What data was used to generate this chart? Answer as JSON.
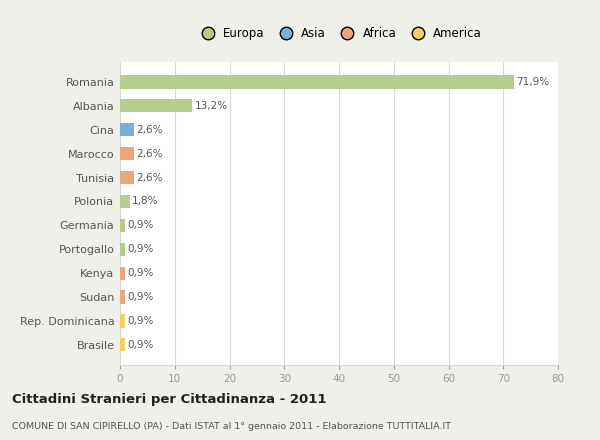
{
  "countries": [
    "Romania",
    "Albania",
    "Cina",
    "Marocco",
    "Tunisia",
    "Polonia",
    "Germania",
    "Portogallo",
    "Kenya",
    "Sudan",
    "Rep. Dominicana",
    "Brasile"
  ],
  "values": [
    71.9,
    13.2,
    2.6,
    2.6,
    2.6,
    1.8,
    0.9,
    0.9,
    0.9,
    0.9,
    0.9,
    0.9
  ],
  "labels": [
    "71,9%",
    "13,2%",
    "2,6%",
    "2,6%",
    "2,6%",
    "1,8%",
    "0,9%",
    "0,9%",
    "0,9%",
    "0,9%",
    "0,9%",
    "0,9%"
  ],
  "colors": [
    "#b5cc8e",
    "#b5cc8e",
    "#7bafd4",
    "#e8a87c",
    "#e8a87c",
    "#b5cc8e",
    "#b5cc8e",
    "#b5cc8e",
    "#e8a87c",
    "#e8a87c",
    "#f0d060",
    "#f0d060"
  ],
  "legend_labels": [
    "Europa",
    "Asia",
    "Africa",
    "America"
  ],
  "legend_colors": [
    "#b5cc8e",
    "#7bafd4",
    "#e8a87c",
    "#f0d060"
  ],
  "title": "Cittadini Stranieri per Cittadinanza - 2011",
  "subtitle": "COMUNE DI SAN CIPIRELLO (PA) - Dati ISTAT al 1° gennaio 2011 - Elaborazione TUTTITALIA.IT",
  "xlim": [
    0,
    80
  ],
  "xticks": [
    0,
    10,
    20,
    30,
    40,
    50,
    60,
    70,
    80
  ],
  "background_color": "#f0f0eb",
  "bar_background": "#ffffff",
  "grid_color": "#d8d8d8"
}
